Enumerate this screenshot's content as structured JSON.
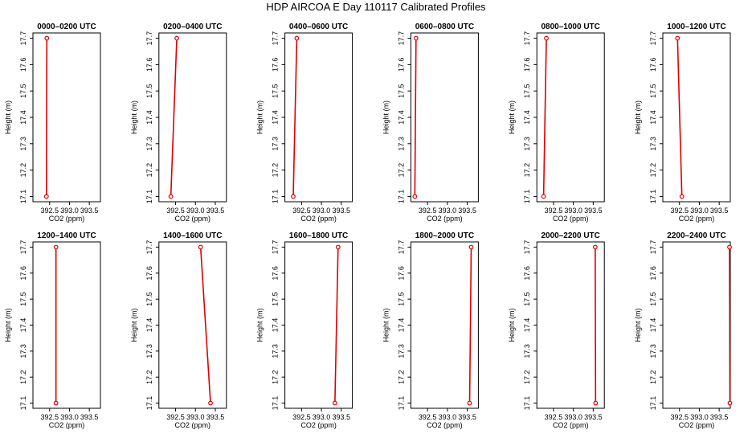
{
  "figure_title": "HDP AIRCOA E  Day 110117  Calibrated Profiles",
  "style": {
    "line_color": "#dd0000",
    "frame_color": "#000000"
  },
  "chart_data": [
    {
      "type": "line",
      "title": "0000–0200 UTC",
      "xlabel": "CO2 (ppm)",
      "ylabel": "Height (m)",
      "xlim": [
        392.08,
        393.78
      ],
      "ylim": [
        17.08,
        17.72
      ],
      "xticks": [
        "392.5",
        "393.0",
        "393.5"
      ],
      "yticks": [
        "17.1",
        "17.2",
        "17.3",
        "17.4",
        "17.5",
        "17.6",
        "17.7"
      ],
      "x": [
        392.42,
        392.43
      ],
      "y": [
        17.1,
        17.7
      ]
    },
    {
      "type": "line",
      "title": "0200–0400 UTC",
      "xlabel": "CO2 (ppm)",
      "ylabel": "Height (m)",
      "xlim": [
        392.08,
        393.78
      ],
      "ylim": [
        17.08,
        17.72
      ],
      "xticks": [
        "392.5",
        "393.0",
        "393.5"
      ],
      "yticks": [
        "17.1",
        "17.2",
        "17.3",
        "17.4",
        "17.5",
        "17.6",
        "17.7"
      ],
      "x": [
        392.38,
        392.53
      ],
      "y": [
        17.1,
        17.7
      ]
    },
    {
      "type": "line",
      "title": "0400–0600 UTC",
      "xlabel": "CO2 (ppm)",
      "ylabel": "Height (m)",
      "xlim": [
        392.08,
        393.78
      ],
      "ylim": [
        17.08,
        17.72
      ],
      "xticks": [
        "392.5",
        "393.0",
        "393.5"
      ],
      "yticks": [
        "17.1",
        "17.2",
        "17.3",
        "17.4",
        "17.5",
        "17.6",
        "17.7"
      ],
      "x": [
        392.29,
        392.38
      ],
      "y": [
        17.1,
        17.7
      ]
    },
    {
      "type": "line",
      "title": "0600–0800 UTC",
      "xlabel": "CO2 (ppm)",
      "ylabel": "Height (m)",
      "xlim": [
        392.08,
        393.78
      ],
      "ylim": [
        17.08,
        17.72
      ],
      "xticks": [
        "392.5",
        "393.0",
        "393.5"
      ],
      "yticks": [
        "17.1",
        "17.2",
        "17.3",
        "17.4",
        "17.5",
        "17.6",
        "17.7"
      ],
      "x": [
        392.18,
        392.21
      ],
      "y": [
        17.1,
        17.7
      ]
    },
    {
      "type": "line",
      "title": "0800–1000 UTC",
      "xlabel": "CO2 (ppm)",
      "ylabel": "Height (m)",
      "xlim": [
        392.08,
        393.78
      ],
      "ylim": [
        17.08,
        17.72
      ],
      "xticks": [
        "392.5",
        "393.0",
        "393.5"
      ],
      "yticks": [
        "17.1",
        "17.2",
        "17.3",
        "17.4",
        "17.5",
        "17.6",
        "17.7"
      ],
      "x": [
        392.25,
        392.32
      ],
      "y": [
        17.1,
        17.7
      ]
    },
    {
      "type": "line",
      "title": "1000–1200 UTC",
      "xlabel": "CO2 (ppm)",
      "ylabel": "Height (m)",
      "xlim": [
        392.08,
        393.78
      ],
      "ylim": [
        17.08,
        17.72
      ],
      "xticks": [
        "392.5",
        "393.0",
        "393.5"
      ],
      "yticks": [
        "17.1",
        "17.2",
        "17.3",
        "17.4",
        "17.5",
        "17.6",
        "17.7"
      ],
      "x": [
        392.56,
        392.45
      ],
      "y": [
        17.1,
        17.7
      ]
    },
    {
      "type": "line",
      "title": "1200–1400 UTC",
      "xlabel": "CO2 (ppm)",
      "ylabel": "Height (m)",
      "xlim": [
        392.08,
        393.78
      ],
      "ylim": [
        17.08,
        17.72
      ],
      "xticks": [
        "392.5",
        "393.0",
        "393.5"
      ],
      "yticks": [
        "17.1",
        "17.2",
        "17.3",
        "17.4",
        "17.5",
        "17.6",
        "17.7"
      ],
      "x": [
        392.66,
        392.66
      ],
      "y": [
        17.1,
        17.7
      ]
    },
    {
      "type": "line",
      "title": "1400–1600 UTC",
      "xlabel": "CO2 (ppm)",
      "ylabel": "Height (m)",
      "xlim": [
        392.08,
        393.78
      ],
      "ylim": [
        17.08,
        17.72
      ],
      "xticks": [
        "392.5",
        "393.0",
        "393.5"
      ],
      "yticks": [
        "17.1",
        "17.2",
        "17.3",
        "17.4",
        "17.5",
        "17.6",
        "17.7"
      ],
      "x": [
        393.38,
        393.13
      ],
      "y": [
        17.1,
        17.7
      ]
    },
    {
      "type": "line",
      "title": "1600–1800 UTC",
      "xlabel": "CO2 (ppm)",
      "ylabel": "Height (m)",
      "xlim": [
        392.08,
        393.78
      ],
      "ylim": [
        17.08,
        17.72
      ],
      "xticks": [
        "392.5",
        "393.0",
        "393.5"
      ],
      "yticks": [
        "17.1",
        "17.2",
        "17.3",
        "17.4",
        "17.5",
        "17.6",
        "17.7"
      ],
      "x": [
        393.34,
        393.42
      ],
      "y": [
        17.1,
        17.7
      ]
    },
    {
      "type": "line",
      "title": "1800–2000 UTC",
      "xlabel": "CO2 (ppm)",
      "ylabel": "Height (m)",
      "xlim": [
        392.08,
        393.78
      ],
      "ylim": [
        17.08,
        17.72
      ],
      "xticks": [
        "392.5",
        "393.0",
        "393.5"
      ],
      "yticks": [
        "17.1",
        "17.2",
        "17.3",
        "17.4",
        "17.5",
        "17.6",
        "17.7"
      ],
      "x": [
        393.56,
        393.6
      ],
      "y": [
        17.1,
        17.7
      ]
    },
    {
      "type": "line",
      "title": "2000–2200 UTC",
      "xlabel": "CO2 (ppm)",
      "ylabel": "Height (m)",
      "xlim": [
        392.08,
        393.78
      ],
      "ylim": [
        17.08,
        17.72
      ],
      "xticks": [
        "392.5",
        "393.0",
        "393.5"
      ],
      "yticks": [
        "17.1",
        "17.2",
        "17.3",
        "17.4",
        "17.5",
        "17.6",
        "17.7"
      ],
      "x": [
        393.56,
        393.55
      ],
      "y": [
        17.1,
        17.7
      ]
    },
    {
      "type": "line",
      "title": "2200–2400 UTC",
      "xlabel": "CO2 (ppm)",
      "ylabel": "Height (m)",
      "xlim": [
        392.08,
        393.78
      ],
      "ylim": [
        17.08,
        17.72
      ],
      "xticks": [
        "392.5",
        "393.0",
        "393.5"
      ],
      "yticks": [
        "17.1",
        "17.2",
        "17.3",
        "17.4",
        "17.5",
        "17.6",
        "17.7"
      ],
      "x": [
        393.77,
        393.76
      ],
      "y": [
        17.1,
        17.7
      ]
    }
  ]
}
